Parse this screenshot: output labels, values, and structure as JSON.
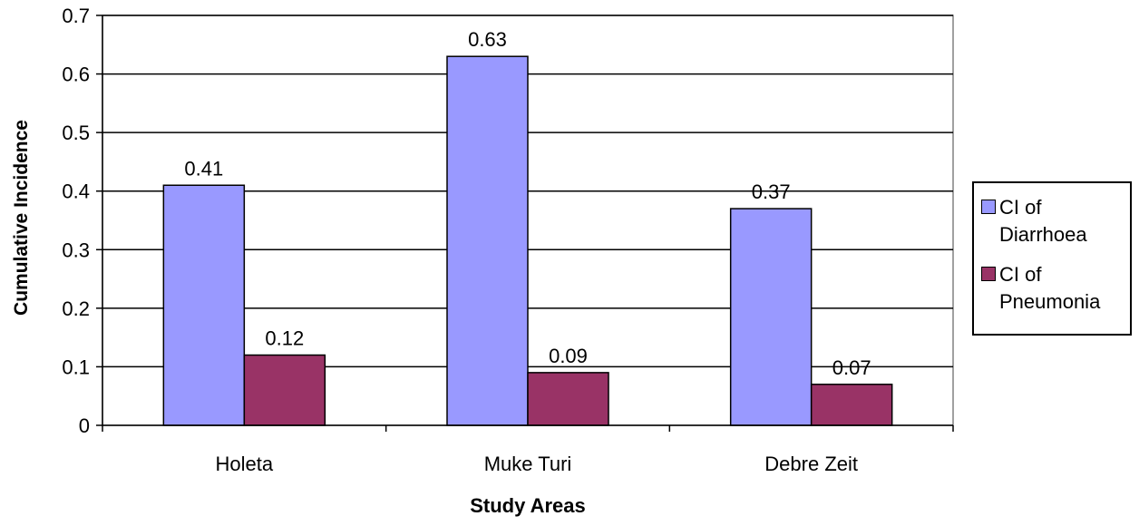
{
  "chart_data": {
    "type": "bar",
    "title": "",
    "xlabel": "Study Areas",
    "ylabel": "Cumulative Incidence",
    "categories": [
      "Holeta",
      "Muke Turi",
      "Debre Zeit"
    ],
    "series": [
      {
        "name": "CI of Diarrhoea",
        "values": [
          0.41,
          0.63,
          0.37
        ],
        "color": "#9999ff"
      },
      {
        "name": "CI of Pneumonia",
        "values": [
          0.12,
          0.09,
          0.07
        ],
        "color": "#993366"
      }
    ],
    "data_labels": [
      [
        "0.41",
        "0.63",
        "0.37"
      ],
      [
        "0.12",
        "0.09",
        "0.07"
      ]
    ],
    "ylim": [
      0,
      0.7
    ],
    "yticks": [
      "0",
      "0.1",
      "0.2",
      "0.3",
      "0.4",
      "0.5",
      "0.6",
      "0.7"
    ],
    "grid": true,
    "legend_position": "right"
  }
}
